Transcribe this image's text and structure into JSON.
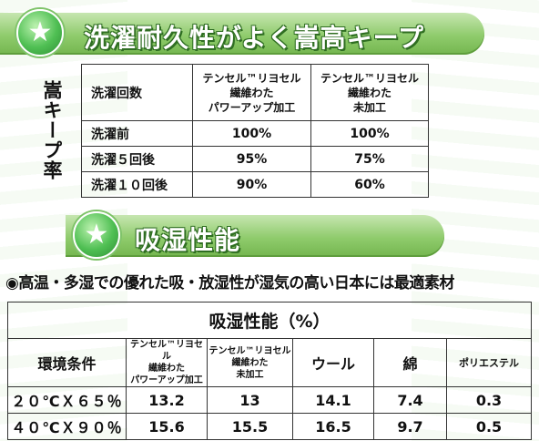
{
  "section1": {
    "title": "洗濯耐久性がよく嵩高キープ",
    "side_label": "嵩キープ率",
    "table": {
      "header": {
        "col0": "洗濯回数",
        "col1_lines": [
          "テンセル™リヨセル",
          "繊維わた",
          "パワーアップ加工"
        ],
        "col2_lines": [
          "テンセル™リヨセル",
          "繊維わた",
          "未加工"
        ]
      },
      "rows": [
        {
          "label": "洗濯前",
          "v1": "100%",
          "v2": "100%"
        },
        {
          "label": "洗濯５回後",
          "v1": "95%",
          "v2": "75%"
        },
        {
          "label": "洗濯１０回後",
          "v1": "90%",
          "v2": "60%"
        }
      ]
    }
  },
  "section2": {
    "title": "吸湿性能",
    "subtitle": "◉高温・多湿での優れた吸・放湿性が湿気の高い日本には最適素材",
    "table": {
      "title": "吸湿性能（%）",
      "header": {
        "col0": "環境条件",
        "col1_lines": [
          "テンセル™リヨセル",
          "繊維わた",
          "パワーアップ加工"
        ],
        "col2_lines": [
          "テンセル™リヨセル",
          "繊維わた",
          "未加工"
        ],
        "col3": "ウール",
        "col4": "綿",
        "col5": "ポリエステル"
      },
      "rows": [
        {
          "cond": "２０℃Ｘ６５％",
          "v1": "13.2",
          "v2": "13",
          "v3": "14.1",
          "v4": "7.4",
          "v5": "0.3"
        },
        {
          "cond": "４０℃Ｘ９０％",
          "v1": "15.6",
          "v2": "15.5",
          "v3": "16.5",
          "v4": "9.7",
          "v5": "0.5"
        }
      ]
    }
  },
  "icons": {
    "badge": "star-icon"
  },
  "colors": {
    "banner_green": "#8fcb6c",
    "badge_green": "#4fbf53",
    "text_outline": "#2f6e22"
  }
}
